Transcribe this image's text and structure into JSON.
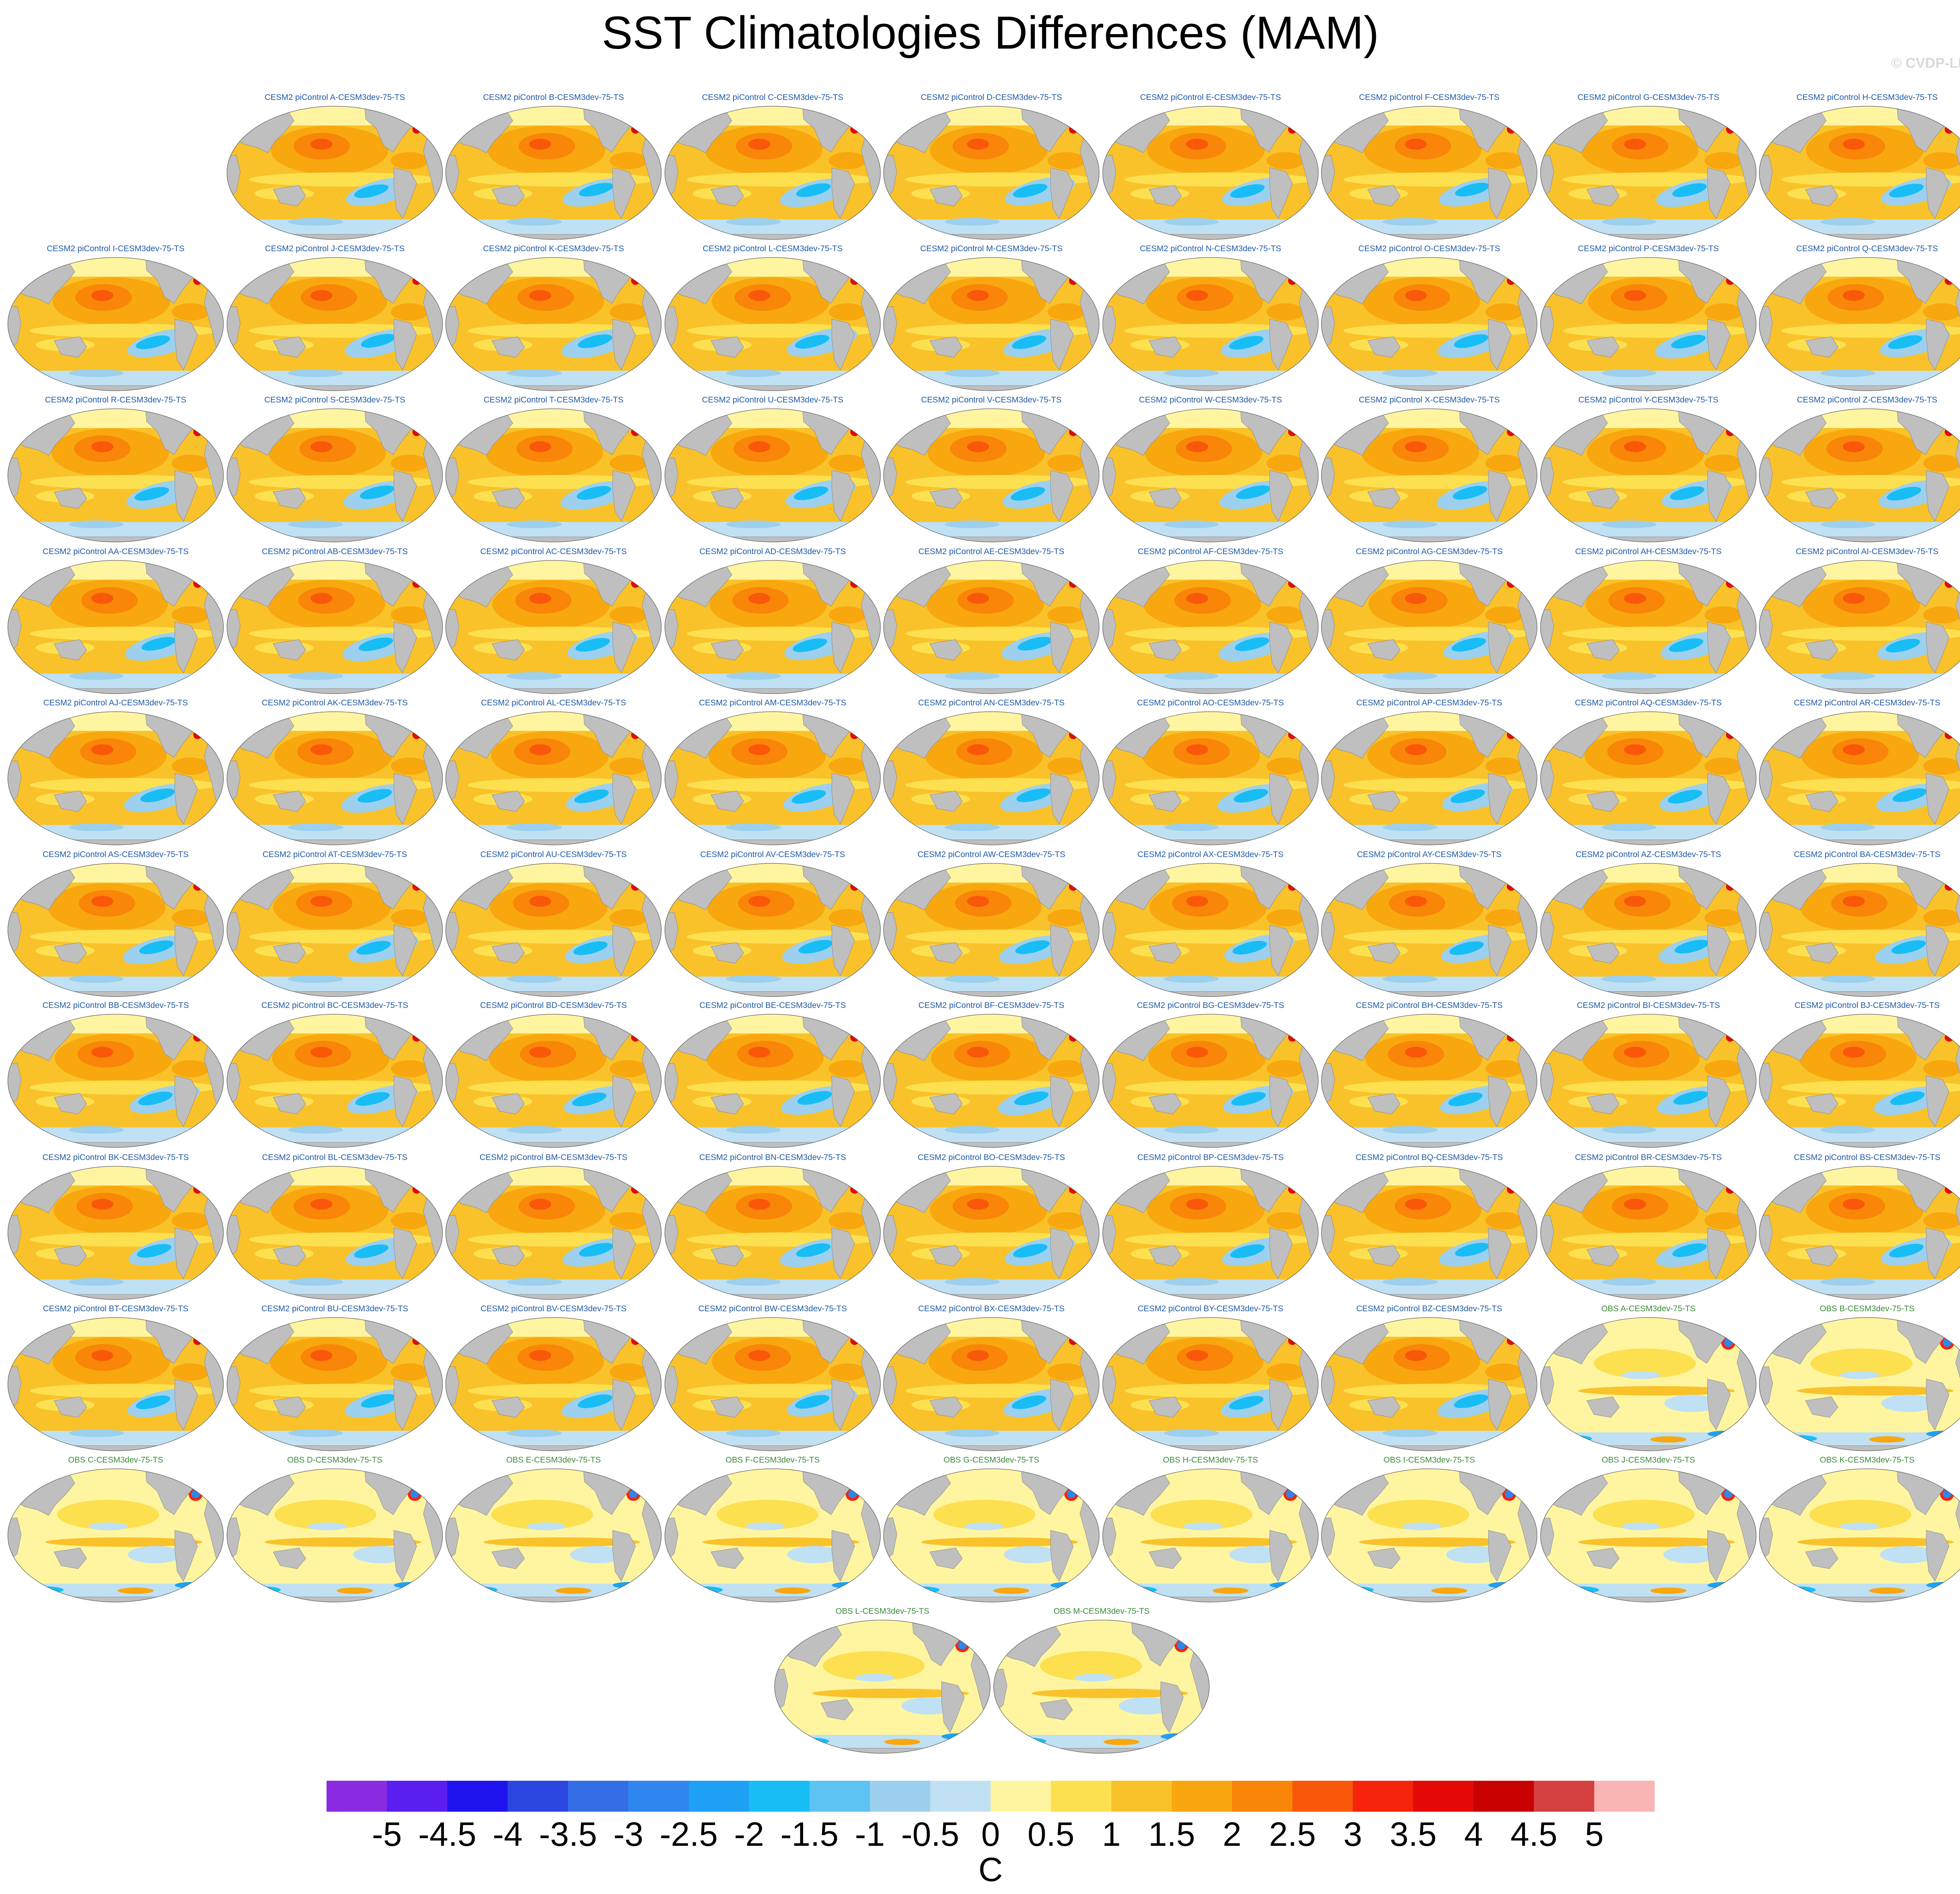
{
  "figure": {
    "title": "SST Climatologies Differences (MAM)",
    "watermark": "© CVDP-LE"
  },
  "chart_data": {
    "type": "heatmap",
    "map_projection": "global ellipse (Robinson-like)",
    "field": "SST climatology difference, MAM",
    "panel_titles": [
      "CESM2 piControl A-CESM3dev-75-TS",
      "CESM2 piControl B-CESM3dev-75-TS",
      "CESM2 piControl C-CESM3dev-75-TS",
      "CESM2 piControl D-CESM3dev-75-TS",
      "CESM2 piControl E-CESM3dev-75-TS",
      "CESM2 piControl F-CESM3dev-75-TS",
      "CESM2 piControl G-CESM3dev-75-TS",
      "CESM2 piControl H-CESM3dev-75-TS",
      "CESM2 piControl I-CESM3dev-75-TS",
      "CESM2 piControl J-CESM3dev-75-TS",
      "CESM2 piControl K-CESM3dev-75-TS",
      "CESM2 piControl L-CESM3dev-75-TS",
      "CESM2 piControl M-CESM3dev-75-TS",
      "CESM2 piControl N-CESM3dev-75-TS",
      "CESM2 piControl O-CESM3dev-75-TS",
      "CESM2 piControl P-CESM3dev-75-TS",
      "CESM2 piControl Q-CESM3dev-75-TS",
      "CESM2 piControl R-CESM3dev-75-TS",
      "CESM2 piControl S-CESM3dev-75-TS",
      "CESM2 piControl T-CESM3dev-75-TS",
      "CESM2 piControl U-CESM3dev-75-TS",
      "CESM2 piControl V-CESM3dev-75-TS",
      "CESM2 piControl W-CESM3dev-75-TS",
      "CESM2 piControl X-CESM3dev-75-TS",
      "CESM2 piControl Y-CESM3dev-75-TS",
      "CESM2 piControl Z-CESM3dev-75-TS",
      "CESM2 piControl AA-CESM3dev-75-TS",
      "CESM2 piControl AB-CESM3dev-75-TS",
      "CESM2 piControl AC-CESM3dev-75-TS",
      "CESM2 piControl AD-CESM3dev-75-TS",
      "CESM2 piControl AE-CESM3dev-75-TS",
      "CESM2 piControl AF-CESM3dev-75-TS",
      "CESM2 piControl AG-CESM3dev-75-TS",
      "CESM2 piControl AH-CESM3dev-75-TS",
      "CESM2 piControl AI-CESM3dev-75-TS",
      "CESM2 piControl AJ-CESM3dev-75-TS",
      "CESM2 piControl AK-CESM3dev-75-TS",
      "CESM2 piControl AL-CESM3dev-75-TS",
      "CESM2 piControl AM-CESM3dev-75-TS",
      "CESM2 piControl AN-CESM3dev-75-TS",
      "CESM2 piControl AO-CESM3dev-75-TS",
      "CESM2 piControl AP-CESM3dev-75-TS",
      "CESM2 piControl AQ-CESM3dev-75-TS",
      "CESM2 piControl AR-CESM3dev-75-TS",
      "CESM2 piControl AS-CESM3dev-75-TS",
      "CESM2 piControl AT-CESM3dev-75-TS",
      "CESM2 piControl AU-CESM3dev-75-TS",
      "CESM2 piControl AV-CESM3dev-75-TS",
      "CESM2 piControl AW-CESM3dev-75-TS",
      "CESM2 piControl AX-CESM3dev-75-TS",
      "CESM2 piControl AY-CESM3dev-75-TS",
      "CESM2 piControl AZ-CESM3dev-75-TS",
      "CESM2 piControl BA-CESM3dev-75-TS",
      "CESM2 piControl BB-CESM3dev-75-TS",
      "CESM2 piControl BC-CESM3dev-75-TS",
      "CESM2 piControl BD-CESM3dev-75-TS",
      "CESM2 piControl BE-CESM3dev-75-TS",
      "CESM2 piControl BF-CESM3dev-75-TS",
      "CESM2 piControl BG-CESM3dev-75-TS",
      "CESM2 piControl BH-CESM3dev-75-TS",
      "CESM2 piControl BI-CESM3dev-75-TS",
      "CESM2 piControl BJ-CESM3dev-75-TS",
      "CESM2 piControl BK-CESM3dev-75-TS",
      "CESM2 piControl BL-CESM3dev-75-TS",
      "CESM2 piControl BM-CESM3dev-75-TS",
      "CESM2 piControl BN-CESM3dev-75-TS",
      "CESM2 piControl BO-CESM3dev-75-TS",
      "CESM2 piControl BP-CESM3dev-75-TS",
      "CESM2 piControl BQ-CESM3dev-75-TS",
      "CESM2 piControl BR-CESM3dev-75-TS",
      "CESM2 piControl BS-CESM3dev-75-TS",
      "CESM2 piControl BT-CESM3dev-75-TS",
      "CESM2 piControl BU-CESM3dev-75-TS",
      "CESM2 piControl BV-CESM3dev-75-TS",
      "CESM2 piControl BW-CESM3dev-75-TS",
      "CESM2 piControl BX-CESM3dev-75-TS",
      "CESM2 piControl BY-CESM3dev-75-TS",
      "CESM2 piControl BZ-CESM3dev-75-TS",
      "OBS A-CESM3dev-75-TS",
      "OBS B-CESM3dev-75-TS",
      "OBS C-CESM3dev-75-TS",
      "OBS D-CESM3dev-75-TS",
      "OBS E-CESM3dev-75-TS",
      "OBS F-CESM3dev-75-TS",
      "OBS G-CESM3dev-75-TS",
      "OBS H-CESM3dev-75-TS",
      "OBS I-CESM3dev-75-TS",
      "OBS J-CESM3dev-75-TS",
      "OBS K-CESM3dev-75-TS",
      "OBS L-CESM3dev-75-TS",
      "OBS M-CESM3dev-75-TS"
    ],
    "colorbar": {
      "levels": [
        -5,
        -4.5,
        -4,
        -3.5,
        -3,
        -2.5,
        -2,
        -1.5,
        -1,
        -0.5,
        0,
        0.5,
        1,
        1.5,
        2,
        2.5,
        3,
        3.5,
        4,
        4.5,
        5
      ],
      "tick_labels": [
        "-5",
        "-4.5",
        "-4",
        "-3.5",
        "-3",
        "-2.5",
        "-2",
        "-1.5",
        "-1",
        "-0.5",
        "0",
        "0.5",
        "1",
        "1.5",
        "2",
        "2.5",
        "3",
        "3.5",
        "4",
        "4.5",
        "5"
      ],
      "colors": [
        "#8a2be2",
        "#5a1ef0",
        "#1f14f0",
        "#2c46e0",
        "#336ee6",
        "#2f86ee",
        "#1ea0f5",
        "#18bdf5",
        "#5cc3f2",
        "#9cd0ee",
        "#bfe1f3",
        "#fff5a0",
        "#fde050",
        "#f9c22b",
        "#f9a70f",
        "#f98608",
        "#f9580a",
        "#f6240a",
        "#e60909",
        "#c80000",
        "#d54040",
        "#fbb4b4"
      ],
      "unit": "C"
    },
    "colors": {
      "land": "#bfbfbf",
      "cesm_title": "#1f5aa6",
      "obs_title": "#3a8a3a"
    }
  }
}
